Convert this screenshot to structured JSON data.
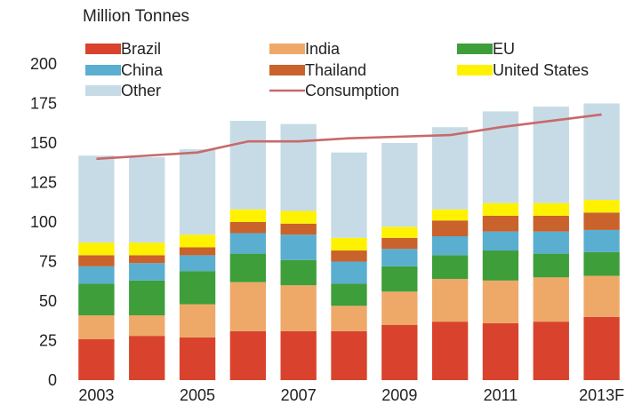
{
  "chart_data": {
    "type": "bar",
    "stacked": true,
    "ylabel": "Million Tonnes",
    "ylim": [
      0,
      200
    ],
    "yticks": [
      "0",
      "25",
      "50",
      "75",
      "100",
      "125",
      "150",
      "175",
      "200"
    ],
    "categories": [
      "2003",
      "2004",
      "2005",
      "2006",
      "2007",
      "2008",
      "2009",
      "2010",
      "2011",
      "2012",
      "2013F"
    ],
    "xtick_labels": [
      "2003",
      "",
      "2005",
      "",
      "2007",
      "",
      "2009",
      "",
      "2011",
      "",
      "2013F"
    ],
    "legend_position": "top-left",
    "series": [
      {
        "name": "Brazil",
        "color": "#d9432d",
        "values": [
          26,
          28,
          27,
          31,
          31,
          31,
          35,
          37,
          36,
          37,
          40
        ]
      },
      {
        "name": "China",
        "color": "#5aaed0",
        "values": [
          11,
          11,
          10,
          13,
          16,
          14,
          11,
          12,
          12,
          14,
          14
        ]
      },
      {
        "name": "Other",
        "color": "#c6dbe6",
        "values": [
          55,
          54,
          54,
          56,
          55,
          54,
          53,
          52,
          58,
          61,
          61
        ]
      },
      {
        "name": "India",
        "color": "#eea968",
        "values": [
          15,
          13,
          21,
          31,
          29,
          16,
          21,
          27,
          27,
          28,
          26
        ]
      },
      {
        "name": "Thailand",
        "color": "#c9622b",
        "values": [
          7,
          5,
          5,
          7,
          7,
          7,
          7,
          10,
          10,
          10,
          11
        ]
      },
      {
        "name": "EU",
        "color": "#3d9e3a",
        "values": [
          20,
          22,
          21,
          18,
          16,
          14,
          16,
          15,
          19,
          15,
          15
        ]
      },
      {
        "name": "United States",
        "color": "#fff200",
        "values": [
          8,
          8,
          8,
          8,
          8,
          8,
          7,
          7,
          8,
          8,
          8
        ]
      }
    ],
    "stack_order": [
      "Brazil",
      "India",
      "EU",
      "China",
      "Thailand",
      "United States",
      "Other"
    ],
    "line": {
      "name": "Consumption",
      "color": "#c8696a",
      "values": [
        140,
        142,
        144,
        151,
        151,
        153,
        154,
        155,
        160,
        164,
        168
      ]
    }
  }
}
